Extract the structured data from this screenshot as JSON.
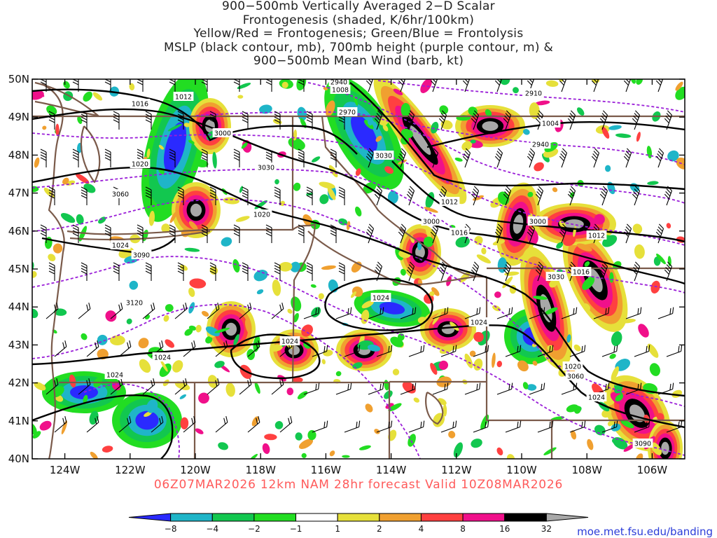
{
  "title": {
    "lines": [
      "900−500mb Vertically Averaged 2−D Scalar",
      "Frontogenesis (shaded, K/6hr/100km)",
      "Yellow/Red = Frontogenesis;  Green/Blue = Frontolysis",
      "MSLP (black contour, mb), 700mb height (purple contour, m) &",
      "900−500mb Mean Wind (barb, kt)"
    ]
  },
  "map": {
    "lat_labels": [
      "50N",
      "49N",
      "48N",
      "47N",
      "46N",
      "45N",
      "44N",
      "43N",
      "42N",
      "41N",
      "40N"
    ],
    "lon_labels": [
      "124W",
      "122W",
      "120W",
      "118W",
      "116W",
      "114W",
      "112W",
      "110W",
      "108W",
      "106W"
    ],
    "lat_range": [
      40,
      50
    ],
    "lon_range": [
      -125,
      -105
    ],
    "mslp_labels": [
      "1016",
      "1012",
      "1008",
      "1020",
      "1024",
      "1004",
      "1012",
      "1016",
      "1024",
      "1020",
      "1024",
      "1024",
      "1012",
      "1020",
      "1016",
      "1024",
      "1024",
      "1020",
      "1024"
    ],
    "height_labels": [
      "2940",
      "2910",
      "2970",
      "3000",
      "3030",
      "3060",
      "3090",
      "3120",
      "3000",
      "2940",
      "3000",
      "3030",
      "3030",
      "3060",
      "3090"
    ],
    "colors": {
      "frontolysis_strong": "#2a2aff",
      "frontolysis_moderate": "#1fb5c8",
      "frontolysis_weak": "#12c74f",
      "frontolysis_faint": "#22dd22",
      "frontogenesis_weak": "#e6e03a",
      "frontogenesis_moderate": "#f0a030",
      "frontogenesis_strong": "#ff4040",
      "frontogenesis_very_strong": "#f0108a",
      "frontogenesis_extreme": "#000000",
      "frontogenesis_max": "#a8a8a8",
      "mslp_contour": "#000000",
      "height_contour": "#9a1ed8",
      "borders": "#7a5a4a"
    }
  },
  "colorbar": {
    "tick_labels": [
      "−8",
      "−4",
      "−2",
      "−1",
      "1",
      "2",
      "4",
      "8",
      "16",
      "32"
    ],
    "segment_colors": [
      "#2a2aff",
      "#1fb5c8",
      "#12c74f",
      "#22dd22",
      "#ffffff",
      "#e6e03a",
      "#f0a030",
      "#ff4040",
      "#f0108a",
      "#000000",
      "#a8a8a8"
    ]
  },
  "footer": {
    "run_text": "06Z07MAR2026  12km NAM 28hr forecast Valid 10Z08MAR2026",
    "run_color": "#ff5a5a"
  },
  "source": {
    "url_text": "moe.met.fsu.edu/banding"
  }
}
